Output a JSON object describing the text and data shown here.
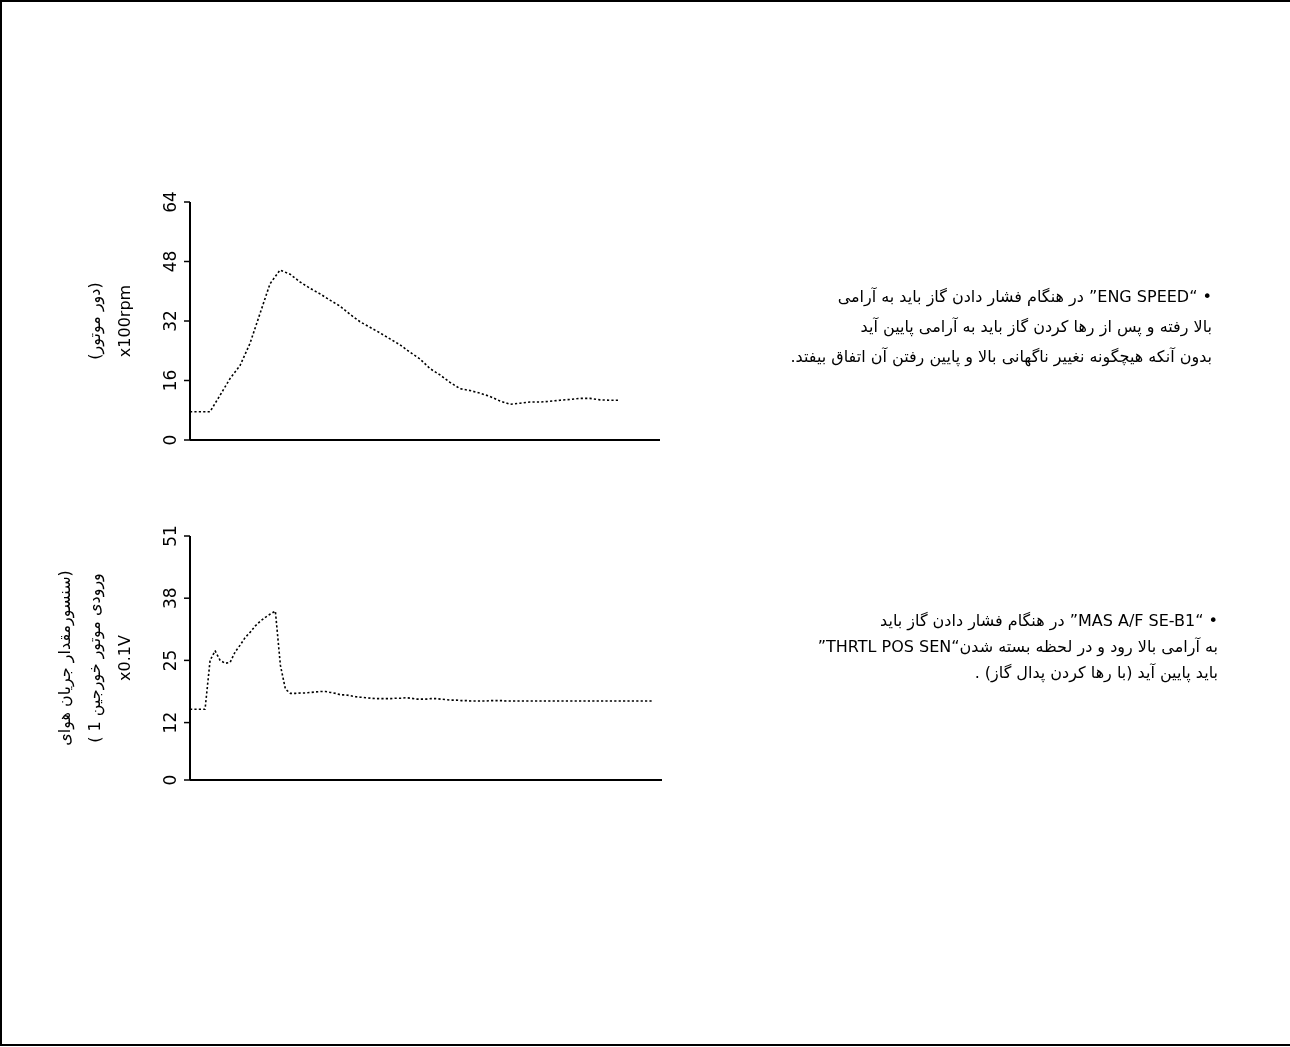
{
  "chart_data": [
    {
      "type": "line",
      "ylabel": "(دور موتور)\nx100rpm",
      "ylim": [
        0,
        64
      ],
      "yticks": [
        0,
        16,
        32,
        48,
        64
      ],
      "line_style": "dotted",
      "categories": [
        null,
        null,
        null,
        null,
        null,
        null,
        null,
        null,
        null,
        null,
        null,
        null,
        null,
        null,
        null,
        null,
        null,
        null,
        null,
        null,
        null,
        null,
        null,
        null,
        null,
        null,
        null,
        null,
        null,
        null,
        null,
        null,
        null,
        null,
        null,
        null,
        null,
        null,
        null,
        null,
        null,
        null,
        null,
        null,
        null,
        null,
        null,
        null
      ],
      "series": [
        {
          "color": "#000000",
          "values": [
            7.6,
            7.6,
            7.6,
            12,
            16.5,
            20,
            26,
            34,
            42,
            45.7,
            44.6,
            42.5,
            40.8,
            39.3,
            37.6,
            36,
            33.8,
            31.8,
            30.3,
            28.8,
            27.2,
            25.6,
            23.6,
            21.8,
            19.2,
            17.5,
            15.5,
            13.8,
            13.3,
            12.6,
            11.7,
            10.5,
            9.6,
            9.9,
            10.2,
            10.2,
            10.4,
            10.7,
            10.9,
            11.2,
            11.2,
            10.8,
            10.7,
            10.7,
            null,
            null,
            null,
            null
          ]
        }
      ],
      "annotations": [
        "• “ENG SPEED” در هنگام فشار دادن گاز باید به آرامی",
        "بالا رفته و پس از رها کردن گاز باید به آرامی پایین آید",
        "بدون آنکه هیچگونه نغییر ناگهانی بالا و پایین رفتن آن اتفاق بیفتد."
      ]
    },
    {
      "type": "line",
      "ylabel": "(سنسورمقدار جریان هوای\nورودی موتور خورجین 1 )\nx0.1V",
      "ylim": [
        0,
        51
      ],
      "yticks": [
        0,
        12,
        25,
        38,
        51
      ],
      "line_style": "dotted",
      "categories": [
        null,
        null,
        null,
        null,
        null,
        null,
        null,
        null,
        null,
        null,
        null,
        null,
        null,
        null,
        null,
        null,
        null,
        null,
        null,
        null,
        null,
        null,
        null,
        null,
        null,
        null,
        null,
        null,
        null,
        null,
        null,
        null,
        null,
        null,
        null,
        null,
        null,
        null,
        null,
        null,
        null,
        null,
        null,
        null,
        null,
        null,
        null,
        null,
        null,
        null,
        null,
        null,
        null,
        null,
        null,
        null,
        null,
        null,
        null,
        null,
        null,
        null,
        null,
        null,
        null,
        null,
        null,
        null,
        null,
        null,
        null,
        null,
        null,
        null,
        null,
        null,
        null,
        null,
        null,
        null,
        null,
        null,
        null,
        null,
        null,
        null,
        null,
        null,
        null,
        null,
        null,
        null,
        null,
        null,
        null
      ],
      "series": [
        {
          "color": "#000000",
          "values": [
            14.8,
            14.8,
            14.8,
            14.8,
            25,
            27,
            25,
            24.4,
            24.6,
            26.8,
            28.2,
            29.8,
            30.9,
            32.2,
            33.2,
            34,
            34.7,
            35.3,
            24,
            19,
            18.1,
            18.1,
            18.2,
            18.2,
            18.3,
            18.4,
            18.5,
            18.5,
            18.3,
            18.1,
            17.8,
            17.8,
            17.6,
            17.4,
            17.3,
            17.2,
            17.1,
            17,
            17,
            17,
            17,
            17.1,
            17.1,
            17.2,
            17.1,
            16.9,
            16.9,
            16.9,
            17,
            17,
            16.9,
            16.8,
            16.7,
            16.7,
            16.6,
            16.6,
            16.5,
            16.5,
            16.5,
            16.5,
            16.6,
            16.6,
            16.6,
            16.5,
            16.5,
            16.5,
            16.5,
            16.5,
            16.5,
            16.5,
            16.5,
            16.5,
            16.5,
            16.5,
            16.5,
            16.5,
            16.5,
            16.5,
            16.5,
            16.5,
            16.5,
            16.5,
            16.5,
            16.5,
            16.5,
            16.5,
            16.5,
            16.5,
            16.5,
            16.5,
            16.5,
            16.5,
            16.5,
            null,
            null
          ]
        }
      ],
      "annotations": [
        "• “MAS A/F SE-B1” در هنگام فشار دادن گاز باید",
        "به آرامی بالا رود و در لحظه بسته شدن“THRTL POS SEN”",
        "باید پایین آید (با رها کردن پدال گاز) ."
      ]
    }
  ]
}
